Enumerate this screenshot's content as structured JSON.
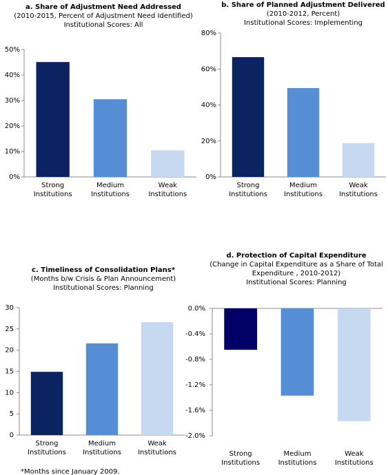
{
  "chart_data": [
    {
      "type": "bar",
      "title": "a. Share of Adjustment Need Addressed",
      "subtitle_lines": [
        "(2010-2015, Percent of Adjustment Need Identified)",
        "Institutional Scores: All"
      ],
      "categories": [
        "Strong Institutions",
        "Medium Institutions",
        "Weak Institutions"
      ],
      "values": [
        45.1,
        30.5,
        10.4
      ],
      "colors": [
        "#0b2361",
        "#558ed5",
        "#c6d9f1"
      ],
      "ylim": [
        0,
        50
      ],
      "yticks": [
        {
          "value": 0,
          "label": "0%"
        },
        {
          "value": 10,
          "label": "10%"
        },
        {
          "value": 20,
          "label": "20%"
        },
        {
          "value": 30,
          "label": "30%"
        },
        {
          "value": 40,
          "label": "40%"
        },
        {
          "value": 50,
          "label": "50%"
        }
      ]
    },
    {
      "type": "bar",
      "title": "b. Share of Planned Adjustment Delivered",
      "subtitle_lines": [
        "(2010-2012, Percent)",
        "Institutional Scores: Implementing"
      ],
      "categories": [
        "Strong Institutions",
        "Medium Institutions",
        "Weak Institutions"
      ],
      "values": [
        66.6,
        49.4,
        18.8
      ],
      "colors": [
        "#0b2361",
        "#558ed5",
        "#c6d9f1"
      ],
      "ylim": [
        0,
        80
      ],
      "yticks": [
        {
          "value": 0,
          "label": "0%"
        },
        {
          "value": 20,
          "label": "20%"
        },
        {
          "value": 40,
          "label": "40%"
        },
        {
          "value": 60,
          "label": "60%"
        },
        {
          "value": 80,
          "label": "80%"
        }
      ]
    },
    {
      "type": "bar",
      "title": "c. Timeliness of Consolidation Plans*",
      "subtitle_lines": [
        "(Months b/w Crisis & Plan Announcement)",
        "Institutional Scores: Planning"
      ],
      "categories": [
        "Strong Institutions",
        "Medium Institutions",
        "Weak Institutions"
      ],
      "values": [
        14.9,
        21.6,
        26.6
      ],
      "colors": [
        "#0b2361",
        "#558ed5",
        "#c6d9f1"
      ],
      "ylim": [
        0,
        30
      ],
      "yticks": [
        0,
        5,
        10,
        15,
        20,
        25,
        30
      ],
      "footnote": "*Months since January 2009."
    },
    {
      "type": "bar",
      "title": "d. Protection of Capital Expenditure",
      "subtitle_lines": [
        "(Change in Capital Expenditure as a Share of Total",
        "Expenditure , 2010-2012)",
        "Institutional Scores: Planning"
      ],
      "categories": [
        "Strong Institutions",
        "Medium Institutions",
        "Weak Institutions"
      ],
      "values": [
        -0.65,
        -1.37,
        -1.77
      ],
      "colors": [
        "#000066",
        "#558ed5",
        "#c6d9f1"
      ],
      "ylim": [
        -2.0,
        0.0
      ],
      "yticks": [
        {
          "value": 0.0,
          "label": "0.0%"
        },
        {
          "value": -0.4,
          "label": "-0.4%"
        },
        {
          "value": -0.8,
          "label": "-0.8%"
        },
        {
          "value": -1.2,
          "label": "-1.2%"
        },
        {
          "value": -1.6,
          "label": "-1.6%"
        },
        {
          "value": -2.0,
          "label": "-2.0%"
        }
      ]
    }
  ]
}
